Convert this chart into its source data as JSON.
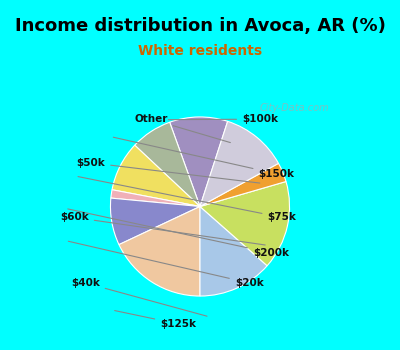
{
  "title": "Income distribution in Avoca, AR (%)",
  "subtitle": "White residents",
  "title_color": "#000000",
  "subtitle_color": "#cc6600",
  "background_top": "#00ffff",
  "background_chart": "#e8f5e8",
  "labels": [
    "$100k",
    "$150k",
    "$75k",
    "$200k",
    "$20k",
    "$125k",
    "$40k",
    "$60k",
    "$50k",
    "Other"
  ],
  "values": [
    10.5,
    7.5,
    9.0,
    1.5,
    8.5,
    18.0,
    13.5,
    16.0,
    3.5,
    12.0
  ],
  "colors": [
    "#a08fc0",
    "#a8b89a",
    "#f0e060",
    "#f0b0b8",
    "#8888cc",
    "#f0c8a0",
    "#a8c8e8",
    "#c8e060",
    "#f0a030",
    "#d0ccdc"
  ],
  "watermark": "City-Data.com",
  "figsize": [
    4.0,
    3.5
  ],
  "dpi": 100
}
